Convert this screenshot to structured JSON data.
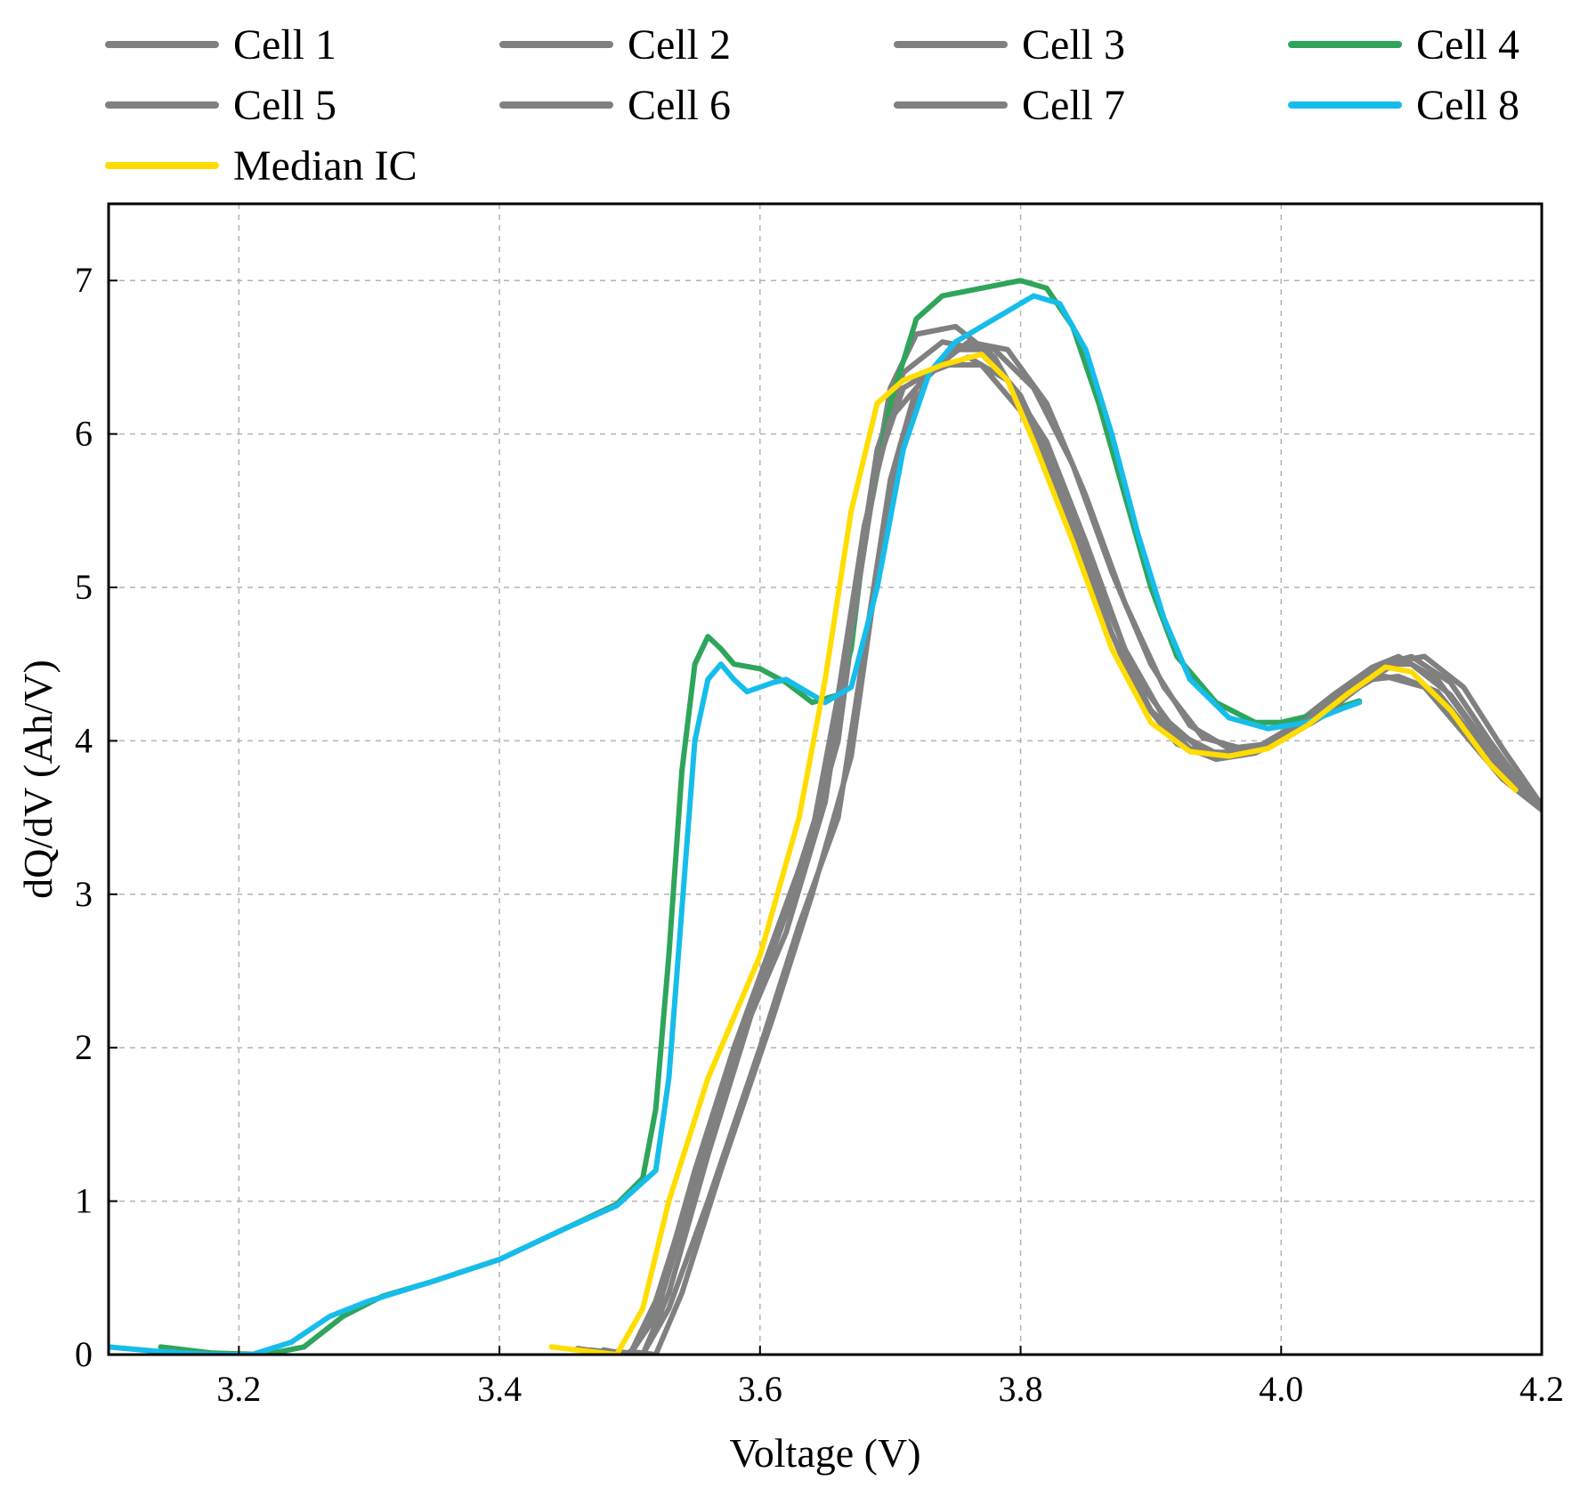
{
  "chart_data": {
    "type": "line",
    "title": "",
    "xlabel": "Voltage (V)",
    "ylabel": "dQ/dV (Ah/V)",
    "xlim": [
      3.1,
      4.2
    ],
    "ylim": [
      0,
      7.5
    ],
    "xticks": [
      {
        "value": 3.2,
        "label": "3.2"
      },
      {
        "value": 3.4,
        "label": "3.4"
      },
      {
        "value": 3.6,
        "label": "3.6"
      },
      {
        "value": 3.8,
        "label": "3.8"
      },
      {
        "value": 4.0,
        "label": "4.0"
      },
      {
        "value": 4.2,
        "label": "4.2"
      }
    ],
    "yticks": [
      {
        "value": 0,
        "label": "0"
      },
      {
        "value": 1,
        "label": "1"
      },
      {
        "value": 2,
        "label": "2"
      },
      {
        "value": 3,
        "label": "3"
      },
      {
        "value": 4,
        "label": "4"
      },
      {
        "value": 5,
        "label": "5"
      },
      {
        "value": 6,
        "label": "6"
      },
      {
        "value": 7,
        "label": "7"
      }
    ],
    "grid": true,
    "legend_position": "top",
    "series": [
      {
        "name": "Cell 1",
        "color": "#808080",
        "points": [
          [
            3.46,
            0.04
          ],
          [
            3.49,
            0.0
          ],
          [
            3.51,
            0.0
          ],
          [
            3.53,
            0.4
          ],
          [
            3.56,
            1.3
          ],
          [
            3.6,
            2.4
          ],
          [
            3.63,
            3.1
          ],
          [
            3.66,
            4.0
          ],
          [
            3.68,
            5.3
          ],
          [
            3.7,
            6.3
          ],
          [
            3.72,
            6.65
          ],
          [
            3.75,
            6.7
          ],
          [
            3.78,
            6.5
          ],
          [
            3.81,
            6.05
          ],
          [
            3.84,
            5.4
          ],
          [
            3.87,
            4.7
          ],
          [
            3.9,
            4.2
          ],
          [
            3.93,
            3.95
          ],
          [
            3.96,
            3.9
          ],
          [
            3.99,
            3.98
          ],
          [
            4.02,
            4.15
          ],
          [
            4.05,
            4.35
          ],
          [
            4.08,
            4.5
          ],
          [
            4.1,
            4.5
          ],
          [
            4.13,
            4.3
          ],
          [
            4.16,
            3.95
          ],
          [
            4.19,
            3.65
          ],
          [
            4.2,
            3.55
          ]
        ]
      },
      {
        "name": "Cell 2",
        "color": "#808080",
        "points": [
          [
            3.48,
            0.03
          ],
          [
            3.5,
            0.0
          ],
          [
            3.52,
            0.25
          ],
          [
            3.55,
            1.1
          ],
          [
            3.59,
            2.2
          ],
          [
            3.62,
            2.9
          ],
          [
            3.65,
            3.7
          ],
          [
            3.67,
            4.8
          ],
          [
            3.69,
            5.9
          ],
          [
            3.71,
            6.4
          ],
          [
            3.74,
            6.6
          ],
          [
            3.77,
            6.55
          ],
          [
            3.8,
            6.25
          ],
          [
            3.83,
            5.7
          ],
          [
            3.86,
            5.0
          ],
          [
            3.89,
            4.4
          ],
          [
            3.92,
            4.05
          ],
          [
            3.95,
            3.92
          ],
          [
            3.98,
            3.95
          ],
          [
            4.01,
            4.1
          ],
          [
            4.04,
            4.3
          ],
          [
            4.07,
            4.48
          ],
          [
            4.09,
            4.55
          ],
          [
            4.12,
            4.4
          ],
          [
            4.15,
            4.05
          ],
          [
            4.18,
            3.7
          ],
          [
            4.2,
            3.55
          ]
        ]
      },
      {
        "name": "Cell 3",
        "color": "#808080",
        "points": [
          [
            3.49,
            0.02
          ],
          [
            3.51,
            0.0
          ],
          [
            3.53,
            0.3
          ],
          [
            3.56,
            1.0
          ],
          [
            3.6,
            2.0
          ],
          [
            3.63,
            2.8
          ],
          [
            3.66,
            3.5
          ],
          [
            3.68,
            4.6
          ],
          [
            3.7,
            5.7
          ],
          [
            3.72,
            6.3
          ],
          [
            3.75,
            6.55
          ],
          [
            3.78,
            6.55
          ],
          [
            3.81,
            6.3
          ],
          [
            3.84,
            5.8
          ],
          [
            3.87,
            5.1
          ],
          [
            3.9,
            4.5
          ],
          [
            3.93,
            4.1
          ],
          [
            3.96,
            3.95
          ],
          [
            3.99,
            3.98
          ],
          [
            4.02,
            4.12
          ],
          [
            4.05,
            4.33
          ],
          [
            4.08,
            4.5
          ],
          [
            4.1,
            4.55
          ],
          [
            4.13,
            4.38
          ],
          [
            4.16,
            4.0
          ],
          [
            4.19,
            3.65
          ],
          [
            4.2,
            3.55
          ]
        ]
      },
      {
        "name": "Cell 4",
        "color": "#2ea55a",
        "points": [
          [
            3.14,
            0.05
          ],
          [
            3.18,
            0.01
          ],
          [
            3.22,
            0.0
          ],
          [
            3.25,
            0.05
          ],
          [
            3.28,
            0.25
          ],
          [
            3.31,
            0.38
          ],
          [
            3.35,
            0.48
          ],
          [
            3.4,
            0.62
          ],
          [
            3.45,
            0.82
          ],
          [
            3.49,
            0.98
          ],
          [
            3.51,
            1.15
          ],
          [
            3.52,
            1.6
          ],
          [
            3.53,
            2.6
          ],
          [
            3.54,
            3.8
          ],
          [
            3.55,
            4.5
          ],
          [
            3.56,
            4.68
          ],
          [
            3.57,
            4.6
          ],
          [
            3.58,
            4.5
          ],
          [
            3.6,
            4.47
          ],
          [
            3.62,
            4.38
          ],
          [
            3.64,
            4.25
          ],
          [
            3.66,
            4.3
          ],
          [
            3.67,
            4.6
          ],
          [
            3.68,
            5.3
          ],
          [
            3.7,
            6.2
          ],
          [
            3.72,
            6.75
          ],
          [
            3.74,
            6.9
          ],
          [
            3.77,
            6.95
          ],
          [
            3.8,
            7.0
          ],
          [
            3.82,
            6.95
          ],
          [
            3.84,
            6.7
          ],
          [
            3.86,
            6.2
          ],
          [
            3.88,
            5.6
          ],
          [
            3.9,
            5.0
          ],
          [
            3.92,
            4.55
          ],
          [
            3.95,
            4.25
          ],
          [
            3.98,
            4.12
          ],
          [
            4.0,
            4.12
          ],
          [
            4.03,
            4.18
          ],
          [
            4.06,
            4.26
          ]
        ]
      },
      {
        "name": "Cell 5",
        "color": "#808080",
        "points": [
          [
            3.47,
            0.03
          ],
          [
            3.5,
            0.0
          ],
          [
            3.52,
            0.3
          ],
          [
            3.55,
            1.2
          ],
          [
            3.58,
            2.0
          ],
          [
            3.61,
            2.7
          ],
          [
            3.64,
            3.4
          ],
          [
            3.66,
            4.3
          ],
          [
            3.68,
            5.4
          ],
          [
            3.7,
            6.1
          ],
          [
            3.73,
            6.4
          ],
          [
            3.76,
            6.5
          ],
          [
            3.79,
            6.35
          ],
          [
            3.82,
            5.95
          ],
          [
            3.85,
            5.3
          ],
          [
            3.88,
            4.6
          ],
          [
            3.91,
            4.15
          ],
          [
            3.94,
            3.93
          ],
          [
            3.97,
            3.92
          ],
          [
            4.0,
            4.02
          ],
          [
            4.03,
            4.2
          ],
          [
            4.06,
            4.38
          ],
          [
            4.08,
            4.42
          ],
          [
            4.11,
            4.35
          ],
          [
            4.14,
            4.05
          ],
          [
            4.17,
            3.75
          ],
          [
            4.2,
            3.55
          ]
        ]
      },
      {
        "name": "Cell 6",
        "color": "#808080",
        "points": [
          [
            3.5,
            0.02
          ],
          [
            3.52,
            0.0
          ],
          [
            3.54,
            0.4
          ],
          [
            3.57,
            1.2
          ],
          [
            3.61,
            2.2
          ],
          [
            3.64,
            3.0
          ],
          [
            3.67,
            3.9
          ],
          [
            3.69,
            5.1
          ],
          [
            3.71,
            6.0
          ],
          [
            3.73,
            6.4
          ],
          [
            3.76,
            6.6
          ],
          [
            3.79,
            6.55
          ],
          [
            3.82,
            6.2
          ],
          [
            3.85,
            5.6
          ],
          [
            3.88,
            4.9
          ],
          [
            3.91,
            4.35
          ],
          [
            3.94,
            4.02
          ],
          [
            3.97,
            3.95
          ],
          [
            4.0,
            4.0
          ],
          [
            4.03,
            4.15
          ],
          [
            4.06,
            4.35
          ],
          [
            4.09,
            4.52
          ],
          [
            4.11,
            4.55
          ],
          [
            4.14,
            4.35
          ],
          [
            4.17,
            3.95
          ],
          [
            4.2,
            3.58
          ]
        ]
      },
      {
        "name": "Cell 7",
        "color": "#808080",
        "points": [
          [
            3.48,
            0.03
          ],
          [
            3.5,
            0.0
          ],
          [
            3.52,
            0.35
          ],
          [
            3.55,
            1.15
          ],
          [
            3.58,
            1.95
          ],
          [
            3.62,
            2.75
          ],
          [
            3.65,
            3.6
          ],
          [
            3.67,
            4.7
          ],
          [
            3.69,
            5.8
          ],
          [
            3.71,
            6.3
          ],
          [
            3.74,
            6.45
          ],
          [
            3.77,
            6.45
          ],
          [
            3.8,
            6.15
          ],
          [
            3.83,
            5.6
          ],
          [
            3.86,
            4.9
          ],
          [
            3.89,
            4.3
          ],
          [
            3.92,
            3.98
          ],
          [
            3.95,
            3.88
          ],
          [
            3.98,
            3.92
          ],
          [
            4.01,
            4.05
          ],
          [
            4.04,
            4.25
          ],
          [
            4.07,
            4.4
          ],
          [
            4.09,
            4.42
          ],
          [
            4.12,
            4.32
          ],
          [
            4.15,
            4.0
          ],
          [
            4.18,
            3.7
          ],
          [
            4.2,
            3.57
          ]
        ]
      },
      {
        "name": "Cell 8",
        "color": "#16bdea",
        "points": [
          [
            3.1,
            0.05
          ],
          [
            3.14,
            0.02
          ],
          [
            3.18,
            0.0
          ],
          [
            3.21,
            0.0
          ],
          [
            3.24,
            0.08
          ],
          [
            3.27,
            0.25
          ],
          [
            3.3,
            0.35
          ],
          [
            3.35,
            0.48
          ],
          [
            3.4,
            0.62
          ],
          [
            3.45,
            0.82
          ],
          [
            3.49,
            0.97
          ],
          [
            3.52,
            1.2
          ],
          [
            3.53,
            1.8
          ],
          [
            3.54,
            2.9
          ],
          [
            3.55,
            4.0
          ],
          [
            3.56,
            4.4
          ],
          [
            3.57,
            4.5
          ],
          [
            3.58,
            4.4
          ],
          [
            3.59,
            4.32
          ],
          [
            3.61,
            4.38
          ],
          [
            3.62,
            4.4
          ],
          [
            3.64,
            4.3
          ],
          [
            3.65,
            4.25
          ],
          [
            3.67,
            4.35
          ],
          [
            3.69,
            5.0
          ],
          [
            3.71,
            5.9
          ],
          [
            3.73,
            6.4
          ],
          [
            3.75,
            6.6
          ],
          [
            3.78,
            6.75
          ],
          [
            3.81,
            6.9
          ],
          [
            3.83,
            6.85
          ],
          [
            3.85,
            6.55
          ],
          [
            3.87,
            6.0
          ],
          [
            3.89,
            5.35
          ],
          [
            3.91,
            4.8
          ],
          [
            3.93,
            4.4
          ],
          [
            3.96,
            4.15
          ],
          [
            3.99,
            4.08
          ],
          [
            4.02,
            4.12
          ],
          [
            4.05,
            4.22
          ],
          [
            4.06,
            4.25
          ]
        ]
      },
      {
        "name": "Median IC",
        "color": "#ffdd00",
        "points": [
          [
            3.44,
            0.05
          ],
          [
            3.47,
            0.02
          ],
          [
            3.49,
            0.0
          ],
          [
            3.51,
            0.3
          ],
          [
            3.53,
            1.0
          ],
          [
            3.56,
            1.8
          ],
          [
            3.6,
            2.6
          ],
          [
            3.63,
            3.5
          ],
          [
            3.65,
            4.4
          ],
          [
            3.67,
            5.5
          ],
          [
            3.69,
            6.2
          ],
          [
            3.71,
            6.35
          ],
          [
            3.74,
            6.45
          ],
          [
            3.77,
            6.52
          ],
          [
            3.79,
            6.35
          ],
          [
            3.81,
            5.95
          ],
          [
            3.84,
            5.3
          ],
          [
            3.87,
            4.6
          ],
          [
            3.9,
            4.12
          ],
          [
            3.93,
            3.93
          ],
          [
            3.96,
            3.9
          ],
          [
            3.99,
            3.95
          ],
          [
            4.02,
            4.1
          ],
          [
            4.05,
            4.3
          ],
          [
            4.08,
            4.48
          ],
          [
            4.1,
            4.45
          ],
          [
            4.13,
            4.2
          ],
          [
            4.16,
            3.85
          ],
          [
            4.18,
            3.68
          ]
        ]
      }
    ]
  }
}
